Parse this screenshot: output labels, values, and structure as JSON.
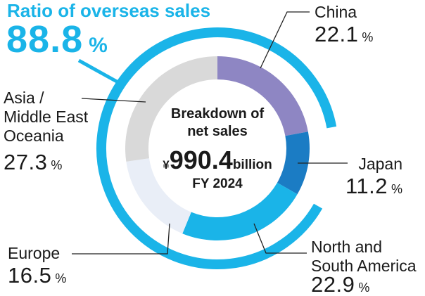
{
  "overseas_ratio": {
    "label": "Ratio of overseas sales",
    "value": 88.8,
    "unit": "%"
  },
  "colors": {
    "accent": "#1ab4e8",
    "text": "#1a1a1a",
    "leader": "#222222"
  },
  "chart_data": {
    "type": "pie",
    "title_lines": [
      "Breakdown of",
      "net sales"
    ],
    "total": {
      "currency": "¥",
      "value": 990.4,
      "unit": "billion"
    },
    "period": "FY 2024",
    "value_unit": "%",
    "slices": [
      {
        "label_lines": [
          "China"
        ],
        "value": 22.1,
        "color": "#8e86c3",
        "overseas": true
      },
      {
        "label_lines": [
          "Japan"
        ],
        "value": 11.2,
        "color": "#1b7cc4",
        "overseas": false
      },
      {
        "label_lines": [
          "North and",
          "South America"
        ],
        "value": 22.9,
        "color": "#1ab4e8",
        "overseas": true
      },
      {
        "label_lines": [
          "Europe"
        ],
        "value": 16.5,
        "color": "#e9eef7",
        "overseas": true
      },
      {
        "label_lines": [
          "Asia /",
          "Middle East",
          "Oceania"
        ],
        "value": 27.3,
        "color": "#d9d9d9",
        "overseas": true
      }
    ]
  }
}
